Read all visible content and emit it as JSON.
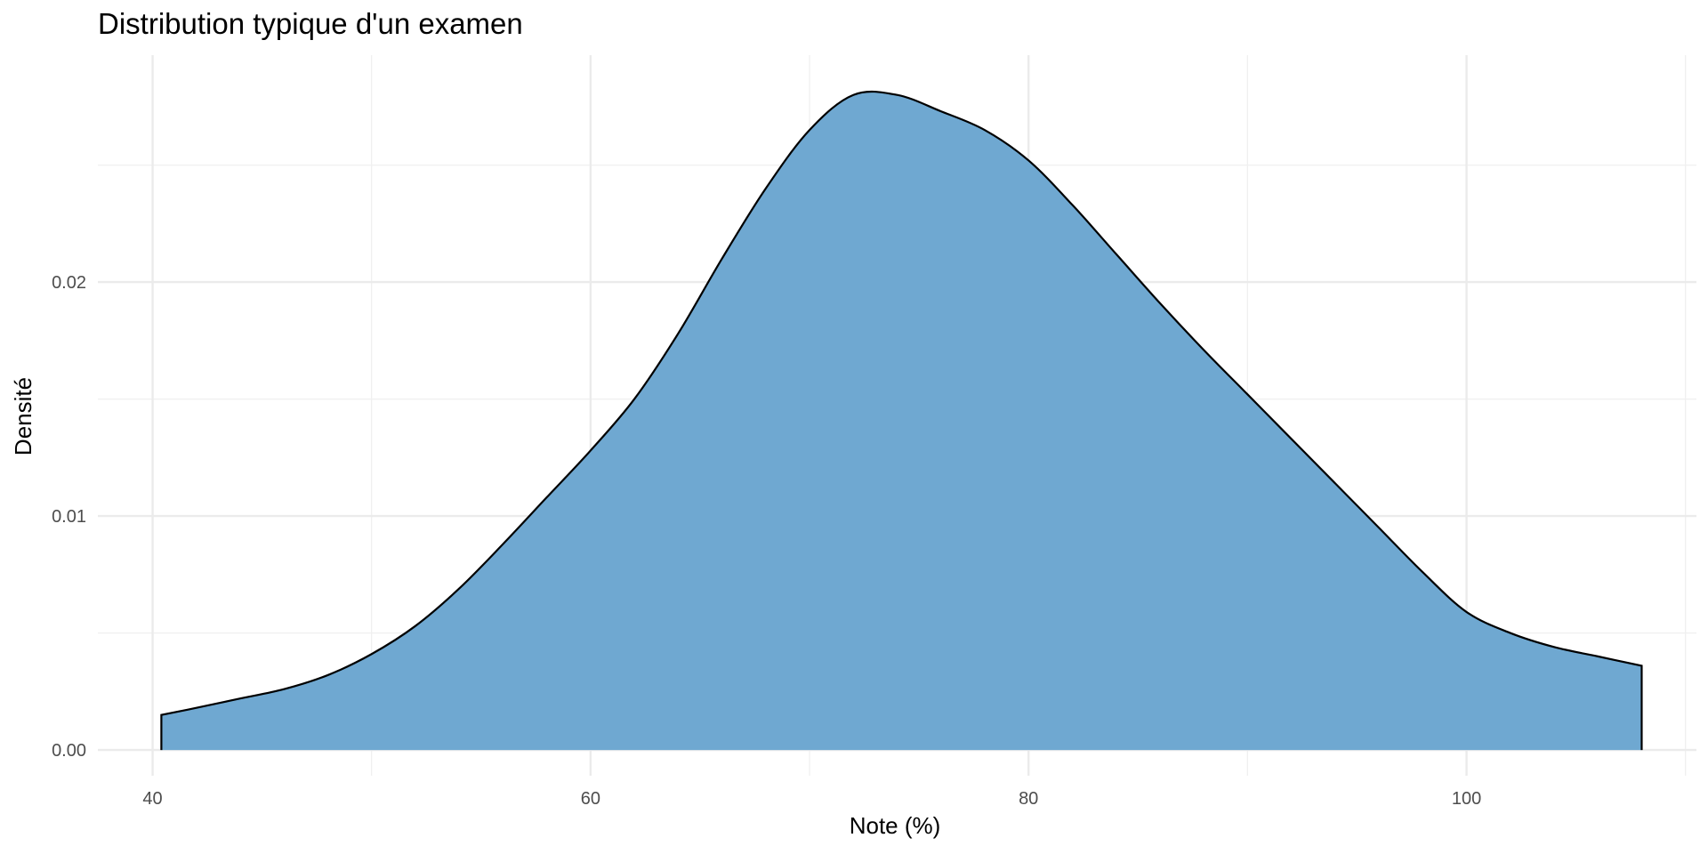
{
  "chart_data": {
    "type": "area",
    "title": "Distribution typique d'un examen",
    "xlabel": "Note (%)",
    "ylabel": "Densité",
    "xlim": [
      37.5,
      110.5
    ],
    "ylim": [
      -0.0011,
      0.0297
    ],
    "x_ticks": [
      40,
      60,
      80,
      100
    ],
    "x_tick_labels": [
      "40",
      "60",
      "80",
      "100"
    ],
    "y_ticks": [
      0,
      0.01,
      0.02
    ],
    "y_tick_labels": [
      "0.00",
      "0.01",
      "0.02"
    ],
    "grid": true,
    "legend": "none",
    "fill_color": "#6FA8D1",
    "line_color": "#000000",
    "series": [
      {
        "x": [
          40.4,
          42,
          44,
          46,
          48,
          50,
          52,
          54,
          56,
          58,
          60,
          62,
          64,
          66,
          68,
          70,
          72,
          74,
          76,
          78,
          80,
          82,
          84,
          86,
          88,
          90,
          92,
          94,
          96,
          98,
          100,
          102,
          104,
          106,
          108
        ],
        "values": [
          0.0015,
          0.0018,
          0.0022,
          0.0026,
          0.0032,
          0.0041,
          0.0053,
          0.0069,
          0.0088,
          0.0108,
          0.0128,
          0.015,
          0.0178,
          0.021,
          0.024,
          0.0265,
          0.028,
          0.028,
          0.0273,
          0.0265,
          0.0252,
          0.0233,
          0.0212,
          0.0191,
          0.0171,
          0.0152,
          0.0133,
          0.0114,
          0.0095,
          0.0076,
          0.0059,
          0.005,
          0.0044,
          0.004,
          0.0036
        ]
      }
    ]
  }
}
